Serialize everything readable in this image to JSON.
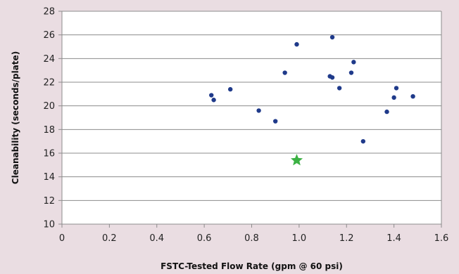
{
  "chart_data": {
    "type": "scatter",
    "title": "",
    "xlabel": "FSTC-Tested Flow Rate (gpm @ 60 psi)",
    "ylabel": "Cleanability (seconds/plate)",
    "xlim": [
      0,
      1.6
    ],
    "ylim": [
      10,
      28
    ],
    "x_ticks": [
      "0",
      "0.2",
      "0.4",
      "0.6",
      "0.8",
      "1.0",
      "1.2",
      "1.4",
      "1.6"
    ],
    "y_ticks": [
      "10",
      "12",
      "14",
      "16",
      "18",
      "20",
      "22",
      "24",
      "26",
      "28"
    ],
    "grid": "horizontal",
    "legend": "none",
    "series": [
      {
        "marker": "circle",
        "color": "#1f3a8a",
        "points": [
          {
            "x": 0.63,
            "y": 20.9
          },
          {
            "x": 0.64,
            "y": 20.5
          },
          {
            "x": 0.71,
            "y": 21.4
          },
          {
            "x": 0.83,
            "y": 19.6
          },
          {
            "x": 0.9,
            "y": 18.7
          },
          {
            "x": 0.94,
            "y": 22.8
          },
          {
            "x": 0.99,
            "y": 25.2
          },
          {
            "x": 1.13,
            "y": 22.5
          },
          {
            "x": 1.14,
            "y": 22.4
          },
          {
            "x": 1.14,
            "y": 25.8
          },
          {
            "x": 1.17,
            "y": 21.5
          },
          {
            "x": 1.22,
            "y": 22.8
          },
          {
            "x": 1.23,
            "y": 23.7
          },
          {
            "x": 1.27,
            "y": 17.0
          },
          {
            "x": 1.37,
            "y": 19.5
          },
          {
            "x": 1.4,
            "y": 20.7
          },
          {
            "x": 1.41,
            "y": 21.5
          },
          {
            "x": 1.48,
            "y": 20.8
          }
        ]
      },
      {
        "marker": "star",
        "color": "#3bb143",
        "points": [
          {
            "x": 0.99,
            "y": 15.4
          }
        ]
      }
    ]
  },
  "colors": {
    "background": "#eadde2",
    "plot_area": "#ffffff",
    "gridline": "#8c8c8c",
    "axis": "#8c8c8c"
  }
}
